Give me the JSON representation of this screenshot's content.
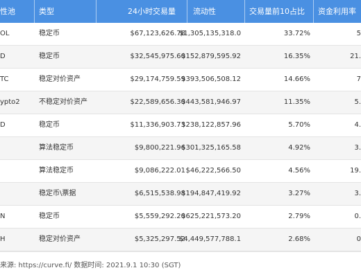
{
  "header": {
    "pool": "性池",
    "type": "类型",
    "volume_24h": "24小时交易量",
    "liquidity": "流动性",
    "top10_share": "交易量前10占比",
    "utilization": "资金利用率"
  },
  "rows": [
    {
      "pool": "OL",
      "type": "稳定币",
      "volume": "$67,123,626.78",
      "liquidity": "$1,305,135,318.02",
      "share": "33.72%",
      "util": "5"
    },
    {
      "pool": "D",
      "type": "稳定币",
      "volume": "$32,545,975.60",
      "liquidity": "$152,879,595.92",
      "share": "16.35%",
      "util": "21."
    },
    {
      "pool": "TC",
      "type": "稳定对价资产",
      "volume": "$29,174,759.59",
      "liquidity": "$393,506,508.12",
      "share": "14.66%",
      "util": "7"
    },
    {
      "pool": "ypto2",
      "type": "不稳定对价资产",
      "volume": "$22,589,656.30",
      "liquidity": "$443,581,946.97",
      "share": "11.35%",
      "util": "5."
    },
    {
      "pool": "D",
      "type": "稳定币",
      "volume": "$11,336,903.73",
      "liquidity": "$238,122,857.96",
      "share": "5.70%",
      "util": "4."
    },
    {
      "pool": "",
      "type": "算法稳定币",
      "volume": "$9,800,221.96",
      "liquidity": "$301,325,165.58",
      "share": "4.92%",
      "util": "3."
    },
    {
      "pool": "",
      "type": "算法稳定币",
      "volume": "$9,086,222.01",
      "liquidity": "$46,222,566.50",
      "share": "4.56%",
      "util": "19."
    },
    {
      "pool": "",
      "type": "稳定币\\票据",
      "volume": "$6,515,538.98",
      "liquidity": "$194,847,419.92",
      "share": "3.27%",
      "util": "3."
    },
    {
      "pool": "N",
      "type": "稳定币",
      "volume": "$5,559,292.20",
      "liquidity": "$625,221,573.20",
      "share": "2.79%",
      "util": "0."
    },
    {
      "pool": "H",
      "type": "稳定对价资产",
      "volume": "$5,325,297.52",
      "liquidity": "$4,449,577,788.19",
      "share": "2.68%",
      "util": "0"
    }
  ],
  "footer": {
    "source": "来源: https://curve.fi/ 数据时间: 2021.9.1 10:30 (SGT)"
  },
  "colors": {
    "header_bg": "#4a90e2",
    "header_text": "#ffffff",
    "alt_row_bg": "#f5f5f5"
  }
}
